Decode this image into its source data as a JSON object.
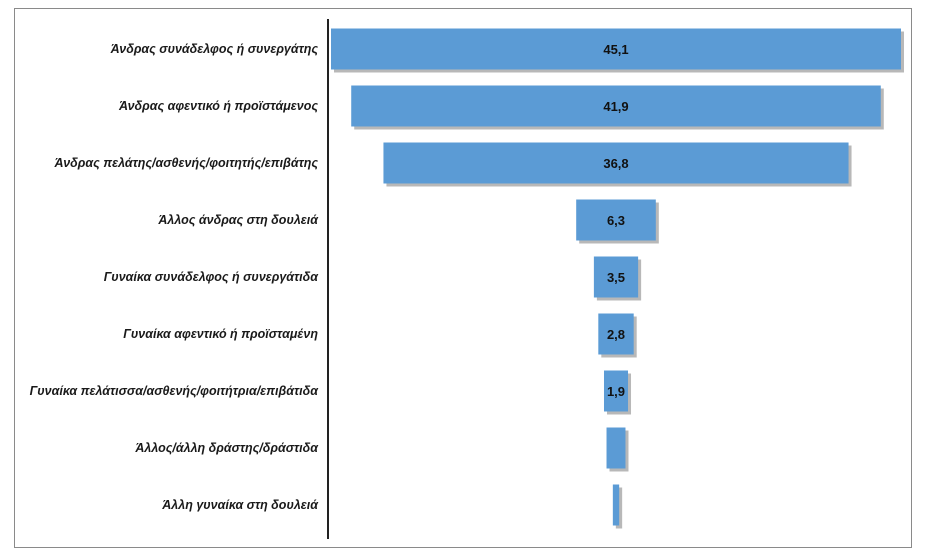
{
  "chart_data": {
    "type": "bar",
    "orientation": "horizontal-centered",
    "categories": [
      "Άνδρας συνάδελφος ή συνεργάτης",
      "Άνδρας αφεντικό ή προϊστάμενος",
      "Άνδρας πελάτης/ασθενής/φοιτητής/επιβάτης",
      "Άλλος άνδρας στη δουλειά",
      "Γυναίκα συνάδελφος ή συνεργάτιδα",
      "Γυναίκα αφεντικό ή προϊσταμένη",
      "Γυναίκα πελάτισσα/ασθενής/φοιτήτρια/επιβάτιδα",
      "Άλλος/άλλη δράστης/δράστιδα",
      "Άλλη γυναίκα στη δουλειά"
    ],
    "values": [
      45.1,
      41.9,
      36.8,
      6.3,
      3.5,
      2.8,
      1.9,
      1.5,
      0.5
    ],
    "data_labels": [
      "45,1",
      "41,9",
      "36,8",
      "6,3",
      "3,5",
      "2,8",
      "1,9",
      "",
      ""
    ],
    "title": "",
    "xlabel": "",
    "ylabel": "",
    "xlim": [
      0,
      45.1
    ],
    "grid": false,
    "legend": "none",
    "bar_color": "#5b9bd5",
    "shadow_color": "#b8b8b8"
  }
}
